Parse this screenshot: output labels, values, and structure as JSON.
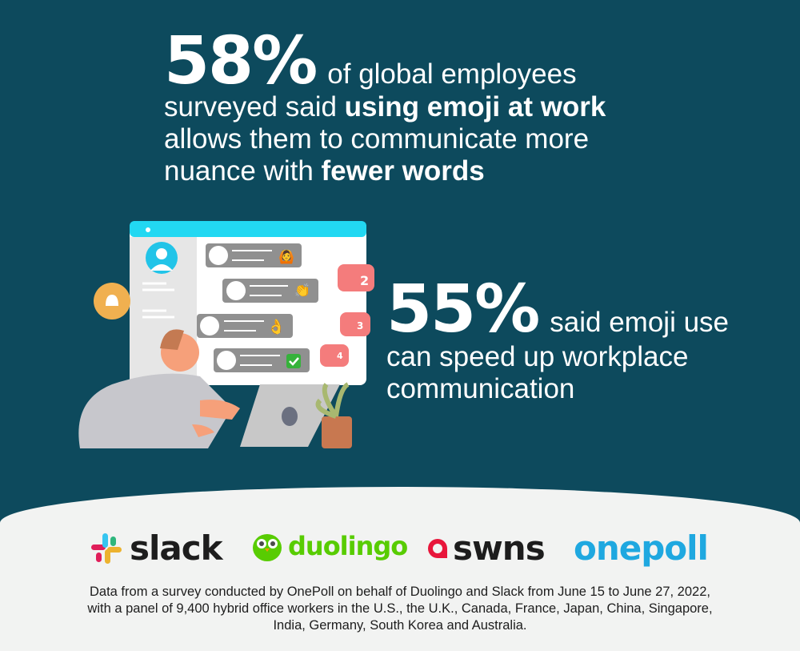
{
  "stat1": {
    "percent": "58%",
    "text1": "of global employees surveyed said ",
    "bold1": "using emoji at work",
    "text2": " allows them to communicate more nuance with ",
    "bold2": "fewer words"
  },
  "stat2": {
    "percent": "55%",
    "text": "said emoji use can speed up workplace communication"
  },
  "illustration": {
    "badges": [
      "2",
      "3",
      "4"
    ]
  },
  "logos": [
    {
      "name": "slack",
      "color": "#1d1d1d"
    },
    {
      "name": "duolingo",
      "color": "#58cc02"
    },
    {
      "name": "swns",
      "color": "#1d1d1d"
    },
    {
      "name": "onepoll",
      "color": "#1fa8e0"
    }
  ],
  "footnote": "Data from a survey conducted by OnePoll on behalf of Duolingo and Slack from June 15 to June 27, 2022, with a panel of 9,400 hybrid office workers in the U.S., the U.K., Canada, France, Japan, China, Singapore, India, Germany, South Korea and Australia.",
  "colors": {
    "background": "#0d4a5d",
    "footer": "#f2f3f2",
    "accent_cyan": "#22d8f2",
    "badge": "#f47c7c"
  }
}
